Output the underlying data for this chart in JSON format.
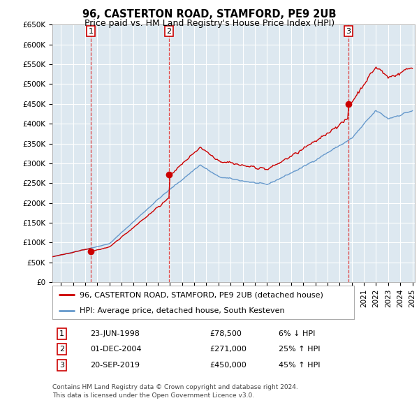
{
  "title": "96, CASTERTON ROAD, STAMFORD, PE9 2UB",
  "subtitle": "Price paid vs. HM Land Registry's House Price Index (HPI)",
  "sales": [
    {
      "date_num": 1998.47,
      "price": 78500,
      "label": "1",
      "date_str": "23-JUN-1998",
      "price_str": "£78,500",
      "pct_str": "6% ↓ HPI"
    },
    {
      "date_num": 2004.92,
      "price": 271000,
      "label": "2",
      "date_str": "01-DEC-2004",
      "price_str": "£271,000",
      "pct_str": "25% ↑ HPI"
    },
    {
      "date_num": 2019.72,
      "price": 450000,
      "label": "3",
      "date_str": "20-SEP-2019",
      "price_str": "£450,000",
      "pct_str": "45% ↑ HPI"
    }
  ],
  "legend_entries": [
    "96, CASTERTON ROAD, STAMFORD, PE9 2UB (detached house)",
    "HPI: Average price, detached house, South Kesteven"
  ],
  "footnote1": "Contains HM Land Registry data © Crown copyright and database right 2024.",
  "footnote2": "This data is licensed under the Open Government Licence v3.0.",
  "ylim": [
    0,
    650000
  ],
  "xlim_start": 1995.3,
  "xlim_end": 2025.2,
  "yticks": [
    0,
    50000,
    100000,
    150000,
    200000,
    250000,
    300000,
    350000,
    400000,
    450000,
    500000,
    550000,
    600000,
    650000
  ],
  "ytick_labels": [
    "£0",
    "£50K",
    "£100K",
    "£150K",
    "£200K",
    "£250K",
    "£300K",
    "£350K",
    "£400K",
    "£450K",
    "£500K",
    "£550K",
    "£600K",
    "£650K"
  ],
  "plot_bg_color": "#dde8f0",
  "fig_bg_color": "#ffffff",
  "grid_color": "#ffffff",
  "property_line_color": "#cc0000",
  "hpi_line_color": "#6699cc",
  "sale_marker_color": "#cc0000",
  "vline_color": "#dd4444",
  "title_fontsize": 10.5,
  "subtitle_fontsize": 9,
  "axis_fontsize": 7.5,
  "legend_fontsize": 8,
  "table_fontsize": 8
}
